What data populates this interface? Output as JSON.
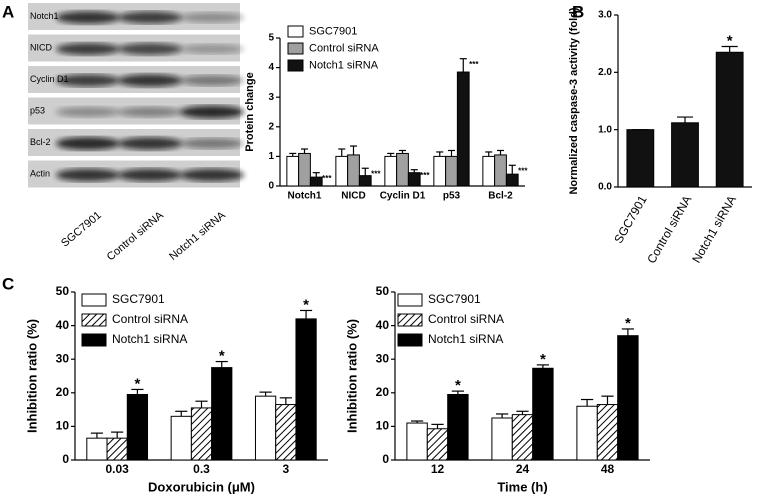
{
  "panel_labels": [
    "A",
    "B",
    "C"
  ],
  "blot": {
    "bands": [
      "Notch1",
      "NICD",
      "Cyclin D1",
      "p53",
      "Bcl-2",
      "Actin"
    ],
    "lanes": [
      "SGC7901",
      "Control siRNA",
      "Notch1 siRNA"
    ]
  },
  "chart_data": [
    {
      "type": "bar",
      "y_label": "Protein change",
      "categories": [
        "Notch1",
        "NICD",
        "Cyclin D1",
        "p53",
        "Bcl-2"
      ],
      "series": [
        {
          "name": "SGC7901",
          "color": "#ffffff",
          "values": [
            1,
            1,
            1,
            1,
            1
          ],
          "errors": [
            0.1,
            0.25,
            0.1,
            0.15,
            0.15
          ]
        },
        {
          "name": "Control siRNA",
          "color": "#a0a0a0",
          "values": [
            1.1,
            1.05,
            1.1,
            1.0,
            1.05
          ],
          "errors": [
            0.15,
            0.3,
            0.1,
            0.2,
            0.15
          ]
        },
        {
          "name": "Notch1 siRNA",
          "color": "#111111",
          "values": [
            0.3,
            0.35,
            0.45,
            3.85,
            0.4
          ],
          "errors": [
            0.15,
            0.25,
            0.1,
            0.45,
            0.3
          ]
        }
      ],
      "significance": [
        "***",
        "***",
        "***",
        "***",
        "***"
      ],
      "ylim": [
        0,
        5
      ],
      "yticks": [
        0,
        1,
        2,
        3,
        4,
        5
      ],
      "legend": "upper left"
    },
    {
      "type": "bar",
      "y_label": "Normalized caspase-3 activity (fold)",
      "categories": [
        "SGC7901",
        "Control siRNA",
        "Notch1 siRNA"
      ],
      "series": [
        {
          "color": "#111111",
          "values": [
            1.0,
            1.12,
            2.35
          ],
          "errors": [
            0,
            0.1,
            0.1
          ]
        }
      ],
      "significance": [
        null,
        null,
        "*"
      ],
      "ylim": [
        0,
        3
      ],
      "yticks": [
        {
          "value": 0,
          "label": "0.0"
        },
        {
          "value": 1,
          "label": "1.0"
        },
        {
          "value": 2,
          "label": "2.0"
        },
        {
          "value": 3,
          "label": "3.0"
        }
      ]
    },
    {
      "type": "bar",
      "y_label": "Inhibition ratio (%)",
      "x_label": "Doxorubicin (μM)",
      "categories": [
        "0.03",
        "0.3",
        "3"
      ],
      "series": [
        {
          "name": "SGC7901",
          "color": "#ffffff",
          "values": [
            6.5,
            13,
            19
          ],
          "errors": [
            1.5,
            1.5,
            1.2
          ]
        },
        {
          "name": "Control siRNA",
          "color": "#ffffff",
          "hatch": true,
          "values": [
            6.5,
            15.5,
            16.5
          ],
          "errors": [
            1.8,
            2,
            2
          ]
        },
        {
          "name": "Notch1 siRNA",
          "color": "#000000",
          "values": [
            19.5,
            27.5,
            42
          ],
          "errors": [
            1.5,
            1.8,
            2.5
          ]
        }
      ],
      "significance": [
        "*",
        "*",
        "*"
      ],
      "ylim": [
        0,
        50
      ],
      "yticks": [
        0,
        10,
        20,
        30,
        40,
        50
      ],
      "legend": "upper left"
    },
    {
      "type": "bar",
      "y_label": "Inhibition ratio (%)",
      "x_label": "Time (h)",
      "categories": [
        "12",
        "24",
        "48"
      ],
      "series": [
        {
          "name": "SGC7901",
          "color": "#ffffff",
          "values": [
            11,
            12.5,
            16
          ],
          "errors": [
            0.6,
            1.2,
            2
          ]
        },
        {
          "name": "Control siRNA",
          "color": "#ffffff",
          "hatch": true,
          "values": [
            9.3,
            13.5,
            16.5
          ],
          "errors": [
            1.3,
            1,
            2.5
          ]
        },
        {
          "name": "Notch1 siRNA",
          "color": "#000000",
          "values": [
            19.5,
            27.3,
            37
          ],
          "errors": [
            1,
            1,
            2
          ]
        }
      ],
      "significance": [
        "*",
        "*",
        "*"
      ],
      "ylim": [
        0,
        50
      ],
      "yticks": [
        0,
        10,
        20,
        30,
        40,
        50
      ],
      "legend": "upper left"
    }
  ]
}
